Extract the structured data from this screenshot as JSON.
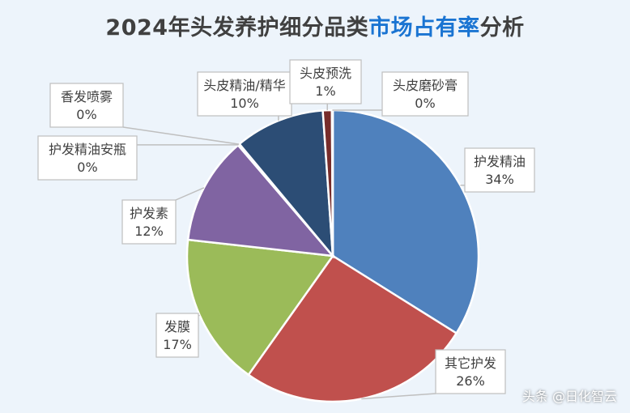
{
  "chart_data": {
    "type": "pie",
    "title_part1": "2024年头发养护细分品类",
    "title_part2": "市场占有率",
    "title_part3": "分析",
    "slices": [
      {
        "label": "护发精油",
        "value": 34,
        "pct_text": "34%",
        "color": "#4f81bd"
      },
      {
        "label": "其它护发",
        "value": 26,
        "pct_text": "26%",
        "color": "#c0504d"
      },
      {
        "label": "发膜",
        "value": 17,
        "pct_text": "17%",
        "color": "#9bbb59"
      },
      {
        "label": "护发素",
        "value": 12,
        "pct_text": "12%",
        "color": "#8064a2"
      },
      {
        "label": "护发精油安瓶",
        "value": 0.1,
        "pct_text": "0%",
        "color": "#4bacc6"
      },
      {
        "label": "香发喷雾",
        "value": 0.1,
        "pct_text": "0%",
        "color": "#f79646"
      },
      {
        "label": "头皮精油/精华",
        "value": 10,
        "pct_text": "10%",
        "color": "#2c4d75"
      },
      {
        "label": "头皮预洗",
        "value": 1,
        "pct_text": "1%",
        "color": "#772c2a"
      },
      {
        "label": "头皮磨砂膏",
        "value": 0.1,
        "pct_text": "0%",
        "color": "#5f7530"
      }
    ]
  },
  "watermark": "头条 @日化智云"
}
